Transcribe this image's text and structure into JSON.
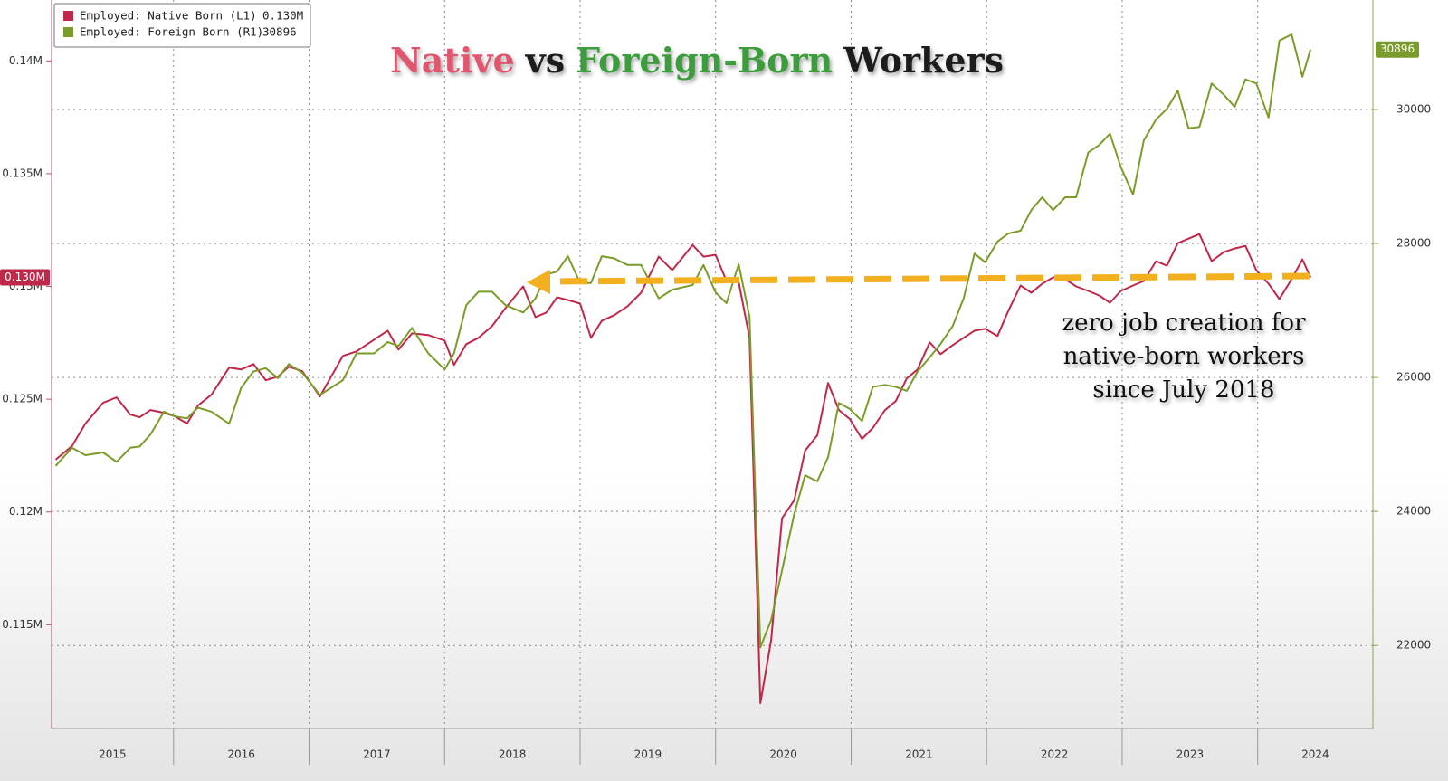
{
  "chart_data": {
    "type": "line",
    "title_parts": [
      {
        "text": "Native",
        "color": "#e0566e"
      },
      {
        "text": "vs",
        "color": "#1a1a1a"
      },
      {
        "text": "Foreign-Born",
        "color": "#3c9c3c"
      },
      {
        "text": "Workers",
        "color": "#1a1a1a"
      }
    ],
    "annotation": [
      "zero job creation for",
      "native-born workers",
      "since July 2018"
    ],
    "x": [
      2015.13,
      2015.25,
      2015.35,
      2015.48,
      2015.58,
      2015.68,
      2015.75,
      2015.83,
      2015.93,
      2016.01,
      2016.1,
      2016.18,
      2016.28,
      2016.41,
      2016.5,
      2016.59,
      2016.68,
      2016.77,
      2016.85,
      2016.95,
      2017.08,
      2017.25,
      2017.35,
      2017.48,
      2017.58,
      2017.66,
      2017.76,
      2017.88,
      2018,
      2018.07,
      2018.16,
      2018.25,
      2018.35,
      2018.45,
      2018.58,
      2018.67,
      2018.75,
      2018.83,
      2018.91,
      2019,
      2019.08,
      2019.16,
      2019.25,
      2019.35,
      2019.45,
      2019.58,
      2019.68,
      2019.83,
      2019.91,
      2020,
      2020.08,
      2020.17,
      2020.25,
      2020.33,
      2020.41,
      2020.49,
      2020.58,
      2020.66,
      2020.75,
      2020.83,
      2020.91,
      2020.99,
      2021.08,
      2021.16,
      2021.25,
      2021.33,
      2021.41,
      2021.49,
      2021.58,
      2021.66,
      2021.75,
      2021.83,
      2021.91,
      2021.99,
      2022.08,
      2022.16,
      2022.25,
      2022.33,
      2022.41,
      2022.49,
      2022.58,
      2022.66,
      2022.75,
      2022.83,
      2022.91,
      2022.99,
      2023.08,
      2023.16,
      2023.25,
      2023.33,
      2023.41,
      2023.49,
      2023.57,
      2023.66,
      2023.75,
      2023.83,
      2023.91,
      2023.99,
      2024.08,
      2024.16,
      2024.25,
      2024.33,
      2024.39
    ],
    "xlim": [
      2015.1,
      2024.85
    ],
    "xticks": [
      2015,
      2016,
      2017,
      2018,
      2019,
      2020,
      2021,
      2022,
      2023,
      2024
    ],
    "ylim": [
      0.1104,
      0.1427
    ],
    "yticks": [
      {
        "value": 0.115,
        "label": "0.115M"
      },
      {
        "value": 0.12,
        "label": "0.12M"
      },
      {
        "value": 0.125,
        "label": "0.125M"
      },
      {
        "value": 0.13,
        "label": "0.13M"
      },
      {
        "value": 0.135,
        "label": "0.135M"
      },
      {
        "value": 0.14,
        "label": "0.14M"
      }
    ],
    "y2lim": [
      20760,
      31635
    ],
    "y2ticks": [
      22000,
      24000,
      26000,
      28000,
      30000
    ],
    "grid": true,
    "series": [
      {
        "name": "Employed: Native Born (L1)",
        "color": "#c0284a",
        "axis": "y",
        "last_label": "0.130M",
        "values": [
          0.12232,
          0.12292,
          0.12392,
          0.12484,
          0.12508,
          0.12432,
          0.1242,
          0.12452,
          0.1244,
          0.12424,
          0.12392,
          0.12472,
          0.1252,
          0.1264,
          0.12632,
          0.12656,
          0.12584,
          0.126,
          0.12644,
          0.12624,
          0.12512,
          0.12692,
          0.12712,
          0.12764,
          0.12804,
          0.1272,
          0.12792,
          0.12784,
          0.1276,
          0.12652,
          0.12744,
          0.12772,
          0.12824,
          0.12904,
          0.13,
          0.12864,
          0.12884,
          0.12952,
          0.1294,
          0.12924,
          0.12772,
          0.12848,
          0.12872,
          0.12912,
          0.12972,
          0.13132,
          0.13072,
          0.13184,
          0.13132,
          0.1314,
          0.13024,
          0.1302,
          0.12772,
          0.11152,
          0.11432,
          0.11972,
          0.12052,
          0.12272,
          0.1234,
          0.12572,
          0.12452,
          0.12412,
          0.12324,
          0.12372,
          0.12452,
          0.12492,
          0.12592,
          0.12632,
          0.12752,
          0.127,
          0.1274,
          0.12772,
          0.12804,
          0.12812,
          0.1278,
          0.12892,
          0.13004,
          0.12972,
          0.13012,
          0.1304,
          0.13032,
          0.13,
          0.1298,
          0.1296,
          0.12928,
          0.1298,
          0.13004,
          0.13024,
          0.13112,
          0.13092,
          0.13192,
          0.13212,
          0.13232,
          0.13112,
          0.13152,
          0.13168,
          0.1318,
          0.13072,
          0.13012,
          0.12944,
          0.13032,
          0.1312,
          0.1304
        ]
      },
      {
        "name": "Employed: Foreign Born (R1)",
        "color": "#7a9c2a",
        "axis": "y2",
        "last_label": "30896",
        "values": [
          24680,
          24950,
          24840,
          24880,
          24740,
          24950,
          24970,
          25150,
          25490,
          25420,
          25390,
          25550,
          25490,
          25310,
          25850,
          26090,
          26140,
          25990,
          26200,
          26070,
          25740,
          25960,
          26360,
          26360,
          26530,
          26470,
          26740,
          26360,
          26120,
          26360,
          27080,
          27280,
          27280,
          27080,
          26970,
          27180,
          27540,
          27580,
          27810,
          27410,
          27410,
          27810,
          27780,
          27680,
          27680,
          27180,
          27310,
          27380,
          27680,
          27270,
          27110,
          27690,
          26910,
          21970,
          22380,
          23120,
          23960,
          24540,
          24450,
          24810,
          25620,
          25530,
          25350,
          25860,
          25890,
          25860,
          25800,
          26090,
          26300,
          26500,
          26770,
          27180,
          27850,
          27720,
          28030,
          28150,
          28190,
          28500,
          28690,
          28500,
          28690,
          28690,
          29360,
          29470,
          29640,
          29140,
          28730,
          29540,
          29850,
          30010,
          30280,
          29720,
          29740,
          30390,
          30220,
          30040,
          30450,
          30390,
          29880,
          31030,
          31120,
          30490,
          30896
        ]
      }
    ]
  }
}
